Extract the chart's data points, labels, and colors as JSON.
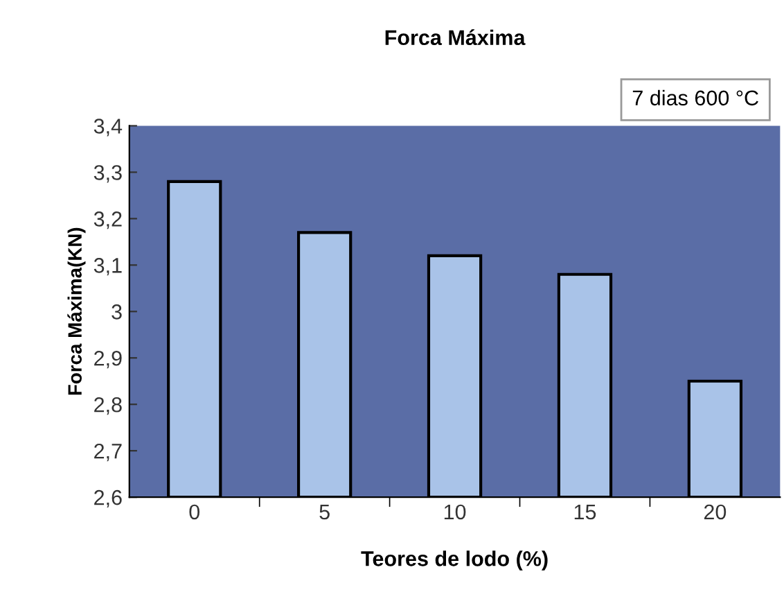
{
  "chart_data": {
    "type": "bar",
    "title": "Forca Máxima",
    "xlabel": "Teores de lodo (%)",
    "ylabel": "Forca Máxima(KN)",
    "annotations": [
      "7 dias 600 °C"
    ],
    "categories": [
      "0",
      "5",
      "10",
      "15",
      "20"
    ],
    "values": [
      3.28,
      3.17,
      3.12,
      3.08,
      2.85
    ],
    "color": "#a9c3e8",
    "ylim": [
      2.6,
      3.4
    ],
    "yticks": [
      {
        "value": 2.6,
        "label": "2,6"
      },
      {
        "value": 2.7,
        "label": "2,7"
      },
      {
        "value": 2.8,
        "label": "2,8"
      },
      {
        "value": 2.9,
        "label": "2,9"
      },
      {
        "value": 3.0,
        "label": "3"
      },
      {
        "value": 3.1,
        "label": "3,1"
      },
      {
        "value": 3.2,
        "label": "3,2"
      },
      {
        "value": 3.3,
        "label": "3,3"
      },
      {
        "value": 3.4,
        "label": "3,4"
      }
    ],
    "grid": false
  }
}
